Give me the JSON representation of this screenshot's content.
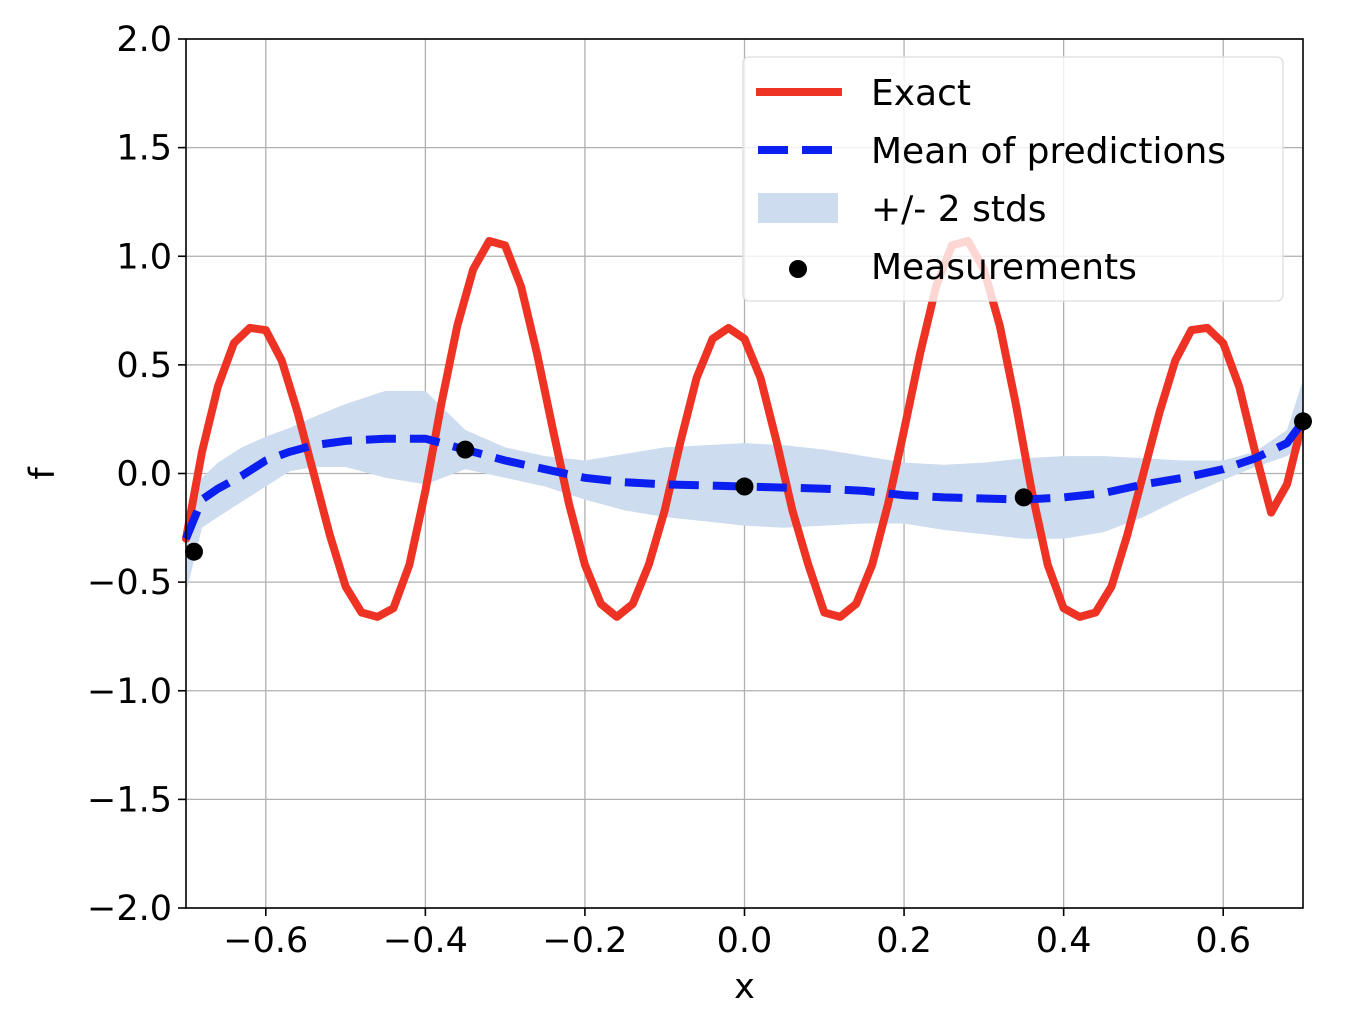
{
  "chart_data": {
    "type": "line",
    "title": "",
    "xlabel": "x",
    "ylabel": "f",
    "xlim": [
      -0.7,
      0.7
    ],
    "ylim": [
      -2.0,
      2.0
    ],
    "grid": true,
    "legend_position": "top-right",
    "x_ticks": [
      -0.6,
      -0.4,
      -0.2,
      0.0,
      0.2,
      0.4,
      0.6
    ],
    "x_tick_labels": [
      "−0.6",
      "−0.4",
      "−0.2",
      "0.0",
      "0.2",
      "0.4",
      "0.6"
    ],
    "y_ticks": [
      2.0,
      1.5,
      1.0,
      0.5,
      0.0,
      -0.5,
      -1.0,
      -1.5,
      -2.0
    ],
    "y_tick_labels": [
      "2.0",
      "1.5",
      "1.0",
      "0.5",
      "0.0",
      "−0.5",
      "−1.0",
      "−1.5",
      "−2.0"
    ],
    "x": [
      -0.7,
      -0.67,
      -0.64,
      -0.61,
      -0.58,
      -0.55,
      -0.52,
      -0.49,
      -0.46,
      -0.43,
      -0.4,
      -0.37,
      -0.34,
      -0.31,
      -0.28,
      -0.25,
      -0.22,
      -0.19,
      -0.16,
      -0.13,
      -0.1,
      -0.07,
      -0.04,
      -0.01,
      0.02,
      0.05,
      0.08,
      0.11,
      0.14,
      0.17,
      0.2,
      0.23,
      0.26,
      0.29,
      0.32,
      0.35,
      0.38,
      0.41,
      0.44,
      0.47,
      0.5,
      0.53,
      0.56,
      0.59,
      0.62,
      0.65,
      0.68,
      0.7
    ],
    "series": [
      {
        "name": "Exact",
        "color": "#ee3324",
        "style": "solid",
        "x": [
          -0.7,
          -0.68,
          -0.66,
          -0.64,
          -0.62,
          -0.6,
          -0.58,
          -0.56,
          -0.54,
          -0.52,
          -0.5,
          -0.48,
          -0.46,
          -0.44,
          -0.42,
          -0.4,
          -0.38,
          -0.36,
          -0.34,
          -0.32,
          -0.3,
          -0.28,
          -0.26,
          -0.24,
          -0.22,
          -0.2,
          -0.18,
          -0.16,
          -0.14,
          -0.12,
          -0.1,
          -0.08,
          -0.06,
          -0.04,
          -0.02,
          0.0,
          0.02,
          0.04,
          0.06,
          0.08,
          0.1,
          0.12,
          0.14,
          0.16,
          0.18,
          0.2,
          0.22,
          0.24,
          0.26,
          0.28,
          0.3,
          0.32,
          0.34,
          0.36,
          0.38,
          0.4,
          0.42,
          0.44,
          0.46,
          0.48,
          0.5,
          0.52,
          0.54,
          0.56,
          0.58,
          0.6,
          0.62,
          0.64,
          0.66,
          0.68,
          0.7
        ],
        "values": [
          -0.3,
          0.1,
          0.4,
          0.6,
          0.67,
          0.66,
          0.52,
          0.28,
          0.0,
          -0.28,
          -0.52,
          -0.64,
          -0.66,
          -0.62,
          -0.42,
          -0.08,
          0.32,
          0.68,
          0.94,
          1.07,
          1.05,
          0.86,
          0.55,
          0.2,
          -0.14,
          -0.42,
          -0.6,
          -0.66,
          -0.6,
          -0.42,
          -0.17,
          0.15,
          0.44,
          0.62,
          0.67,
          0.62,
          0.44,
          0.15,
          -0.17,
          -0.42,
          -0.64,
          -0.66,
          -0.6,
          -0.42,
          -0.14,
          0.2,
          0.55,
          0.86,
          1.05,
          1.07,
          0.94,
          0.68,
          0.32,
          -0.08,
          -0.42,
          -0.62,
          -0.66,
          -0.64,
          -0.52,
          -0.28,
          0.0,
          0.28,
          0.52,
          0.66,
          0.67,
          0.6,
          0.4,
          0.1,
          -0.18,
          -0.05,
          0.25
        ]
      },
      {
        "name": "Mean of predictions",
        "color": "#0a1ff0",
        "style": "dashed",
        "x": [
          -0.7,
          -0.68,
          -0.66,
          -0.63,
          -0.6,
          -0.57,
          -0.54,
          -0.5,
          -0.45,
          -0.4,
          -0.35,
          -0.3,
          -0.25,
          -0.2,
          -0.15,
          -0.1,
          -0.05,
          0.0,
          0.05,
          0.1,
          0.15,
          0.2,
          0.25,
          0.3,
          0.35,
          0.4,
          0.45,
          0.5,
          0.55,
          0.6,
          0.64,
          0.68,
          0.7
        ],
        "values": [
          -0.3,
          -0.12,
          -0.07,
          -0.01,
          0.06,
          0.1,
          0.13,
          0.15,
          0.16,
          0.16,
          0.11,
          0.06,
          0.02,
          -0.02,
          -0.04,
          -0.05,
          -0.055,
          -0.06,
          -0.065,
          -0.07,
          -0.08,
          -0.1,
          -0.11,
          -0.115,
          -0.12,
          -0.11,
          -0.09,
          -0.05,
          -0.02,
          0.02,
          0.07,
          0.14,
          0.24
        ]
      }
    ],
    "band": {
      "name": "+/- 2 stds",
      "color": "#cddcee",
      "x": [
        -0.7,
        -0.68,
        -0.66,
        -0.63,
        -0.6,
        -0.57,
        -0.54,
        -0.5,
        -0.45,
        -0.4,
        -0.35,
        -0.3,
        -0.25,
        -0.2,
        -0.15,
        -0.1,
        -0.05,
        0.0,
        0.05,
        0.1,
        0.15,
        0.2,
        0.25,
        0.3,
        0.35,
        0.4,
        0.45,
        0.5,
        0.55,
        0.6,
        0.64,
        0.68,
        0.7
      ],
      "upper": [
        -0.2,
        -0.02,
        0.05,
        0.12,
        0.17,
        0.21,
        0.26,
        0.32,
        0.38,
        0.38,
        0.2,
        0.12,
        0.08,
        0.06,
        0.09,
        0.12,
        0.13,
        0.14,
        0.13,
        0.11,
        0.08,
        0.05,
        0.04,
        0.05,
        0.07,
        0.08,
        0.08,
        0.07,
        0.06,
        0.06,
        0.1,
        0.2,
        0.43
      ],
      "lower": [
        -0.55,
        -0.25,
        -0.2,
        -0.13,
        -0.06,
        0.01,
        0.03,
        0.03,
        -0.02,
        -0.05,
        0.02,
        -0.02,
        -0.06,
        -0.12,
        -0.17,
        -0.2,
        -0.22,
        -0.24,
        -0.25,
        -0.24,
        -0.23,
        -0.23,
        -0.26,
        -0.28,
        -0.3,
        -0.3,
        -0.27,
        -0.2,
        -0.11,
        -0.03,
        0.03,
        0.08,
        0.13
      ]
    },
    "measurements": {
      "name": "Measurements",
      "color": "#000000",
      "x": [
        -0.69,
        -0.35,
        0.0,
        0.35,
        0.7
      ],
      "y": [
        -0.36,
        0.11,
        -0.06,
        -0.11,
        0.24
      ]
    },
    "legend": [
      {
        "label": "Exact",
        "kind": "line",
        "color": "#ee3324"
      },
      {
        "label": "Mean of predictions",
        "kind": "dashed",
        "color": "#0a1ff0"
      },
      {
        "label": "+/- 2 stds",
        "kind": "patch",
        "color": "#cddcee"
      },
      {
        "label": "Measurements",
        "kind": "marker",
        "color": "#000000"
      }
    ]
  }
}
